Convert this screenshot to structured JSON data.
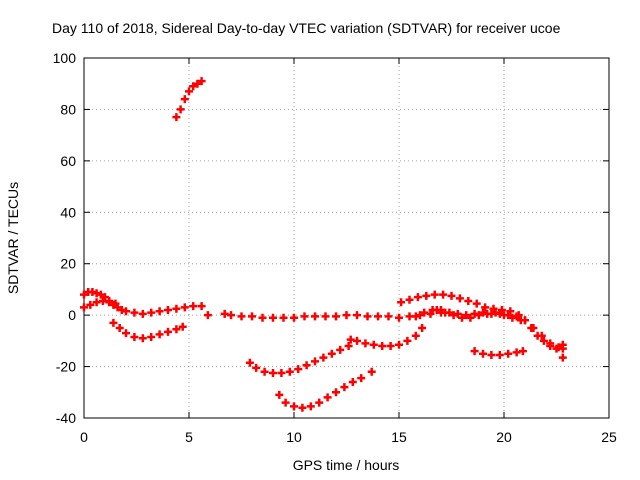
{
  "chart_data": {
    "type": "scatter",
    "title": "Day 110 of 2018, Sidereal Day-to-day VTEC variation (SDTVAR) for receiver ucoe",
    "xlabel": "GPS time / hours",
    "ylabel": "SDTVAR / TECUs",
    "xlim": [
      0,
      25
    ],
    "ylim": [
      -40,
      100
    ],
    "xticks": [
      "0",
      "5",
      "10",
      "15",
      "20",
      "25"
    ],
    "yticks": [
      "-40",
      "-20",
      "0",
      "20",
      "40",
      "60",
      "80",
      "100"
    ],
    "grid": true,
    "marker": "plus",
    "color": "#ff0000",
    "series": [
      {
        "name": "arc-1",
        "x": [
          4.4,
          4.6,
          4.8,
          5.0,
          5.2,
          5.4,
          5.6
        ],
        "y": [
          77,
          80,
          84,
          87,
          89,
          90,
          91
        ]
      },
      {
        "name": "arc-2",
        "x": [
          0.0,
          0.2,
          0.4,
          0.6,
          0.8,
          1.0,
          1.2,
          1.4,
          1.6,
          1.8,
          2.0,
          2.4,
          2.8,
          3.2,
          3.6,
          4.0,
          4.4,
          4.8,
          5.2,
          5.6
        ],
        "y": [
          8,
          9,
          9,
          8.5,
          8,
          7,
          5.5,
          4,
          3,
          2,
          1.5,
          1,
          0.5,
          1,
          1.5,
          2,
          2.5,
          3,
          3.5,
          3.5
        ]
      },
      {
        "name": "arc-3",
        "x": [
          0.0,
          0.3,
          0.6,
          0.9,
          1.2,
          1.5
        ],
        "y": [
          3,
          4,
          5,
          5.5,
          5,
          4.5
        ]
      },
      {
        "name": "arc-4",
        "x": [
          1.4,
          1.7,
          2.0,
          2.4,
          2.8,
          3.2,
          3.6,
          4.0,
          4.4,
          4.7
        ],
        "y": [
          -3,
          -5,
          -7,
          -8.5,
          -9,
          -8.5,
          -7.5,
          -6.5,
          -5.5,
          -4.5
        ]
      },
      {
        "name": "arc-5",
        "x": [
          5.9,
          6.7,
          7.0,
          7.5,
          8.0,
          8.5,
          9.0,
          9.5,
          10.0,
          10.5,
          11.0,
          11.5,
          12.0,
          12.5,
          13.0,
          13.5,
          14.0,
          14.5,
          15.0,
          15.5,
          16.0,
          16.5,
          17.0
        ],
        "y": [
          0,
          0.5,
          0,
          -0.5,
          -0.5,
          -1,
          -1,
          -1,
          -1,
          -0.5,
          -0.5,
          -0.5,
          -0.5,
          0,
          0,
          -0.5,
          -0.5,
          -0.5,
          -1,
          -0.5,
          0,
          0.5,
          1
        ]
      },
      {
        "name": "arc-6",
        "x": [
          7.9,
          8.2,
          8.6,
          9.0,
          9.4,
          9.8,
          10.2,
          10.6,
          11.0,
          11.4,
          11.8,
          12.2,
          12.6
        ],
        "y": [
          -18.5,
          -20.5,
          -22,
          -22.5,
          -22.5,
          -22,
          -21,
          -19.5,
          -18,
          -16.5,
          -15,
          -13.5,
          -12
        ]
      },
      {
        "name": "arc-7",
        "x": [
          9.3,
          9.6,
          10.0,
          10.4,
          10.8,
          11.2,
          11.6,
          12.0,
          12.4,
          12.8,
          13.2,
          13.7
        ],
        "y": [
          -31,
          -34,
          -35.5,
          -36,
          -35.5,
          -34,
          -32,
          -30,
          -28,
          -26,
          -24.5,
          -22
        ]
      },
      {
        "name": "arc-8",
        "x": [
          12.7,
          13.0,
          13.4,
          13.8,
          14.2,
          14.6,
          15.0,
          15.4,
          15.8,
          16.1
        ],
        "y": [
          -9.5,
          -10,
          -11,
          -11.5,
          -12,
          -12,
          -11.5,
          -10,
          -8,
          -5
        ]
      },
      {
        "name": "arc-9",
        "x": [
          15.1,
          15.5,
          15.9,
          16.3,
          16.7,
          17.1,
          17.5,
          17.9,
          18.3,
          18.7,
          19.1,
          19.5,
          19.9,
          20.3,
          20.7,
          21.0,
          21.3,
          21.6,
          21.9,
          22.2,
          22.5
        ],
        "y": [
          5,
          6,
          7,
          7.5,
          8,
          8,
          7.5,
          6.5,
          5.5,
          4.5,
          3,
          2.5,
          2,
          1.5,
          0,
          -2,
          -5,
          -8,
          -10,
          -12,
          -13
        ]
      },
      {
        "name": "arc-10",
        "x": [
          15.8,
          16.2,
          16.6,
          17.0,
          17.4,
          17.8,
          18.2,
          18.6,
          19.0,
          19.4,
          19.8,
          20.2,
          20.6,
          21.0,
          21.4,
          21.8,
          22.2,
          22.6
        ],
        "y": [
          -0.5,
          1,
          2,
          2,
          1,
          0.5,
          0,
          0.5,
          1,
          0.5,
          0.5,
          0,
          -0.5,
          -2,
          -5,
          -8,
          -11,
          -12.5
        ]
      },
      {
        "name": "arc-11",
        "x": [
          16.8,
          17.2,
          17.6,
          18.0,
          18.4,
          18.8,
          19.2,
          19.6,
          20.0,
          20.4,
          20.8
        ],
        "y": [
          2,
          1,
          0,
          -1,
          -1,
          0,
          0.5,
          1,
          0,
          -1,
          -2
        ]
      },
      {
        "name": "arc-12",
        "x": [
          18.6,
          19.0,
          19.4,
          19.8,
          20.2,
          20.6,
          20.9
        ],
        "y": [
          -14,
          -15,
          -15.5,
          -15.5,
          -15,
          -14.5,
          -14
        ]
      },
      {
        "name": "arc-13",
        "x": [
          22.8,
          22.8,
          22.8
        ],
        "y": [
          -11.5,
          -13,
          -16.5
        ]
      }
    ]
  }
}
